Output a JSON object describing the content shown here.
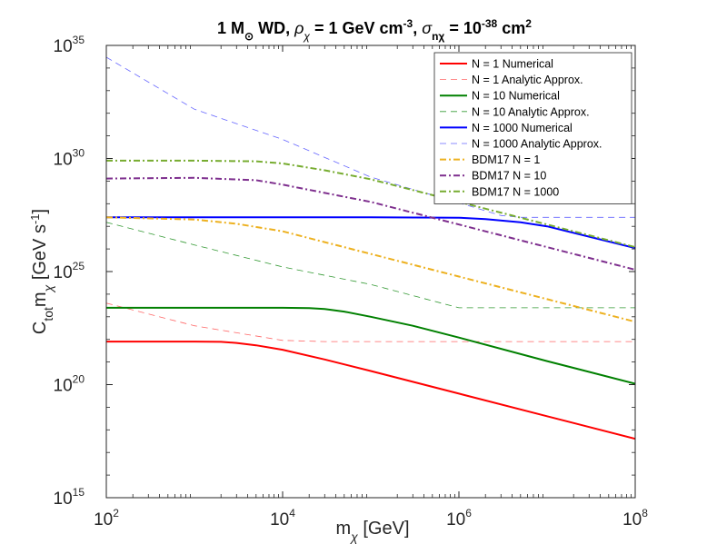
{
  "chart_data": {
    "type": "line",
    "title": {
      "parts": [
        {
          "t": "1 M",
          "style": "normal"
        },
        {
          "t": "⊙",
          "style": "sub"
        },
        {
          "t": " WD, ",
          "style": "normal"
        },
        {
          "t": "ρ",
          "style": "greek"
        },
        {
          "t": "χ",
          "style": "greek-sub"
        },
        {
          "t": " = 1 GeV cm",
          "style": "normal"
        },
        {
          "t": "-3",
          "style": "sup"
        },
        {
          "t": ", ",
          "style": "normal"
        },
        {
          "t": "σ",
          "style": "greek"
        },
        {
          "t": "nχ",
          "style": "sub"
        },
        {
          "t": " = 10",
          "style": "normal"
        },
        {
          "t": "-38",
          "style": "sup"
        },
        {
          "t": " cm",
          "style": "normal"
        },
        {
          "t": "2",
          "style": "sup"
        }
      ]
    },
    "xlabel": {
      "main": "m",
      "sub": "χ",
      "rest": " [GeV]"
    },
    "ylabel": {
      "main": "C",
      "sub1": "tot",
      "mid": "m",
      "sub2": "χ",
      "rest": " [GeV s",
      "sup": "-1",
      "end": "]"
    },
    "x_scale": "log",
    "y_scale": "log",
    "xlim": [
      100,
      100000000
    ],
    "ylim": [
      1000000000000000.0,
      1e+35
    ],
    "x_ticks": [
      {
        "base": "10",
        "exp": "2",
        "value": 100
      },
      {
        "base": "10",
        "exp": "4",
        "value": 10000
      },
      {
        "base": "10",
        "exp": "6",
        "value": 1000000
      },
      {
        "base": "10",
        "exp": "8",
        "value": 100000000
      }
    ],
    "y_ticks": [
      {
        "base": "10",
        "exp": "15",
        "value": 1000000000000000.0
      },
      {
        "base": "10",
        "exp": "20",
        "value": 1e+20
      },
      {
        "base": "10",
        "exp": "25",
        "value": 1e+25
      },
      {
        "base": "10",
        "exp": "30",
        "value": 1e+30
      },
      {
        "base": "10",
        "exp": "35",
        "value": 1e+35
      }
    ],
    "grid": false,
    "legend_position": "top-right",
    "series": [
      {
        "name": "N = 1 Numerical",
        "color": "#ff0000",
        "dash": "solid",
        "width": 2,
        "x": [
          100,
          1000,
          2000,
          3000,
          5000,
          10000,
          30000,
          100000,
          1000000,
          10000000,
          100000000
        ],
        "y": [
          8e+21,
          8e+21,
          7.8e+21,
          7e+21,
          5.5e+21,
          3.5e+21,
          1.3e+21,
          4e+20,
          4e+19,
          4e+18,
          4e+17
        ]
      },
      {
        "name": "N = 1 Analytic Approx.",
        "color": "#ff6666",
        "dash": "dash",
        "width": 0.8,
        "x": [
          100,
          1000,
          10000,
          30000,
          100000,
          100000000
        ],
        "y": [
          4e+23,
          4e+22,
          9e+21,
          8e+21,
          8e+21,
          8e+21
        ]
      },
      {
        "name": "N = 10 Numerical",
        "color": "#008000",
        "dash": "solid",
        "width": 2,
        "x": [
          100,
          1000,
          10000,
          20000,
          30000,
          50000,
          100000,
          300000,
          1000000,
          10000000,
          100000000
        ],
        "y": [
          2.5e+23,
          2.5e+23,
          2.5e+23,
          2.4e+23,
          2.2e+23,
          1.7e+23,
          1e+23,
          4e+22,
          1.2e+22,
          1.1e+21,
          1.1e+20
        ]
      },
      {
        "name": "N = 10 Analytic Approx.",
        "color": "#339933",
        "dash": "dash",
        "width": 0.8,
        "x": [
          100,
          1000,
          10000,
          100000,
          1000000,
          100000000
        ],
        "y": [
          1.5e+27,
          1.5e+26,
          1.6e+25,
          2.7e+24,
          2.5e+23,
          2.5e+23
        ]
      },
      {
        "name": "N = 1000 Numerical",
        "color": "#0000ff",
        "dash": "solid",
        "width": 2,
        "x": [
          100,
          1000,
          10000,
          100000,
          1000000,
          2000000,
          5000000,
          10000000,
          100000000
        ],
        "y": [
          2.5e+27,
          2.5e+27,
          2.5e+27,
          2.5e+27,
          2.4e+27,
          2.1e+27,
          1.5e+27,
          1e+27,
          1.1e+26
        ]
      },
      {
        "name": "N = 1000 Analytic Approx.",
        "color": "#6666ff",
        "dash": "dash",
        "width": 0.8,
        "x": [
          100,
          1000,
          10000,
          100000,
          1000000,
          3000000,
          5000000,
          100000000
        ],
        "y": [
          3e+34,
          1.5e+32,
          7e+30,
          1.5e+29,
          1.1e+28,
          3e+27,
          2.5e+27,
          2.5e+27
        ]
      },
      {
        "name": "BDM17 N = 1",
        "color": "#edb120",
        "dash": "dashdot",
        "width": 2,
        "x": [
          100,
          1000,
          3000,
          10000,
          30000,
          100000,
          1000000,
          10000000,
          100000000
        ],
        "y": [
          2.5e+27,
          2e+27,
          1.3e+27,
          6e+26,
          2e+26,
          6e+25,
          6e+24,
          6e+23,
          6e+22
        ]
      },
      {
        "name": "BDM17 N = 10",
        "color": "#7e2f8e",
        "dash": "dashdot",
        "width": 2,
        "x": [
          100,
          1000,
          5000,
          10000,
          30000,
          100000,
          1000000,
          10000000,
          100000000
        ],
        "y": [
          1.3e+29,
          1.4e+29,
          1.1e+29,
          7e+28,
          3e+28,
          1.2e+28,
          1.2e+27,
          1.2e+26,
          1.2e+25
        ]
      },
      {
        "name": "BDM17 N = 1000",
        "color": "#77ac30",
        "dash": "dashdot",
        "width": 2,
        "x": [
          100,
          1000,
          5000,
          10000,
          30000,
          100000,
          1000000,
          10000000,
          100000000
        ],
        "y": [
          8e+29,
          8e+29,
          7.5e+29,
          6e+29,
          3e+29,
          1.2e+29,
          1.2e+28,
          1.2e+27,
          1.2e+26
        ]
      }
    ]
  }
}
